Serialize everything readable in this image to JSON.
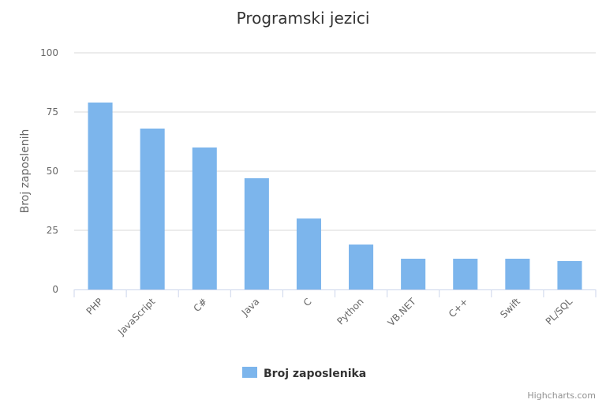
{
  "colors": {
    "bar": "#7cb5ec",
    "grid": "#d8d8d8",
    "axis": "#ccd6eb",
    "text": "#333333",
    "muted": "#666666",
    "credits": "#909090"
  },
  "credits": "Highcharts.com",
  "chart_data": {
    "type": "bar",
    "title": "Programski jezici",
    "xlabel": "",
    "ylabel": "Broj zaposlenih",
    "categories": [
      "PHP",
      "JavaScript",
      "C#",
      "Java",
      "C",
      "Python",
      "VB.NET",
      "C++",
      "Swift",
      "PL/SQL"
    ],
    "series": [
      {
        "name": "Broj zaposlenika",
        "color": "#7cb5ec",
        "values": [
          79,
          68,
          60,
          47,
          30,
          19,
          13,
          13,
          13,
          12
        ]
      }
    ],
    "ylim": [
      0,
      100
    ],
    "yticks": [
      0,
      25,
      50,
      75,
      100
    ],
    "grid": true,
    "legend": "bottom-center"
  }
}
